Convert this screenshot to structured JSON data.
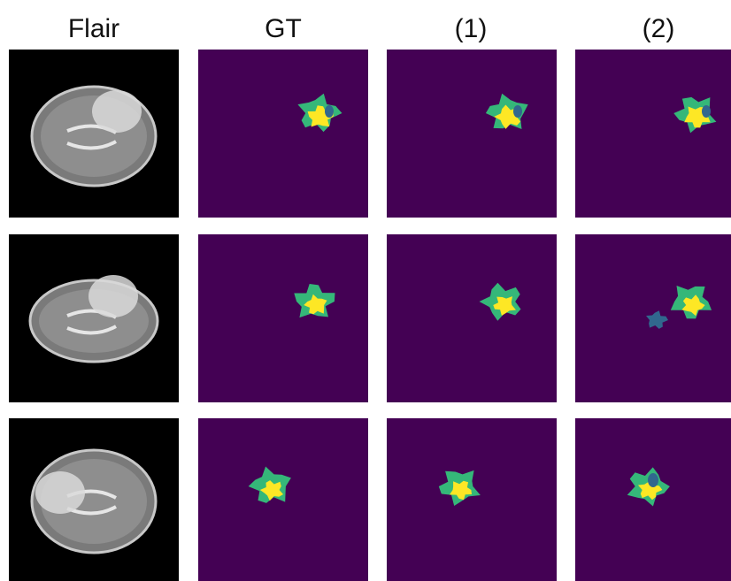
{
  "columns": [
    "Flair",
    "GT",
    "(1)",
    "(2)"
  ]
}
